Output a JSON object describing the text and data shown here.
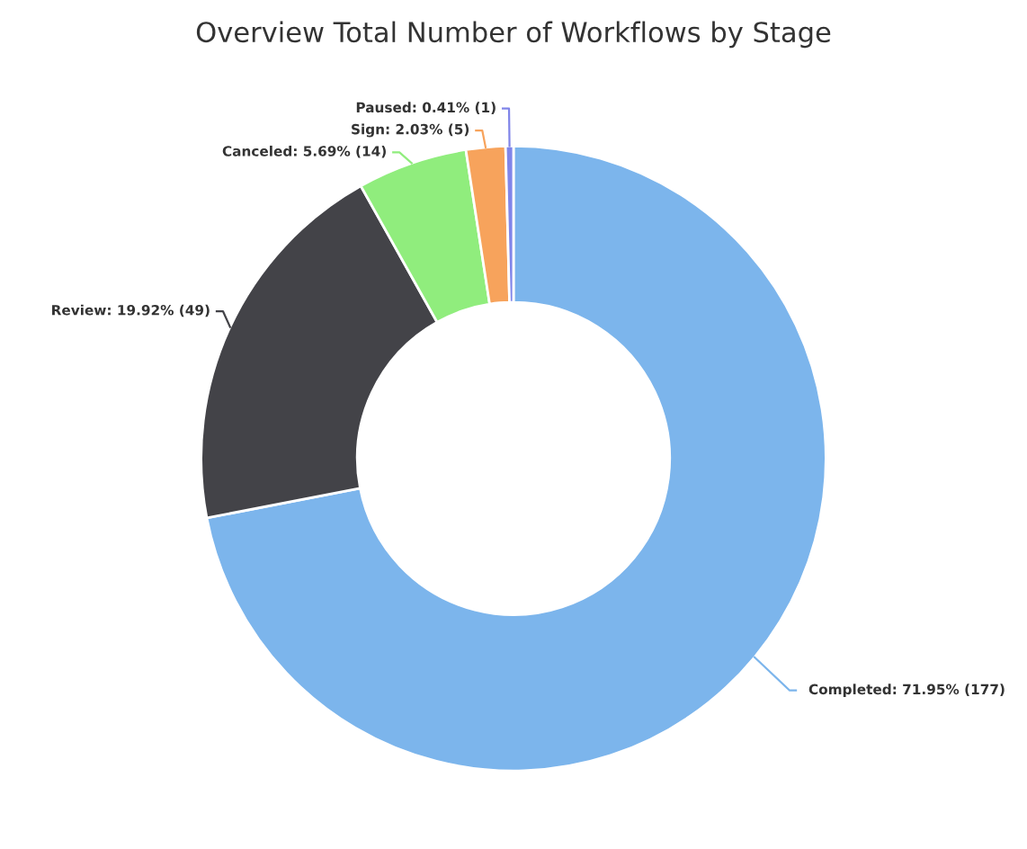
{
  "chart_data": {
    "type": "donut",
    "title": "Overview Total Number of Workflows by Stage",
    "categories": [
      "Completed",
      "Review",
      "Canceled",
      "Sign",
      "Paused"
    ],
    "values": [
      177,
      49,
      14,
      5,
      1
    ],
    "colors": [
      "#7cb5ec",
      "#434348",
      "#90ed7d",
      "#f7a35c",
      "#8085e9"
    ],
    "value_labels": [
      "71.95% (177)",
      "19.92% (49)",
      "5.69% (14)",
      "2.03% (5)",
      "0.41% (1)"
    ]
  }
}
